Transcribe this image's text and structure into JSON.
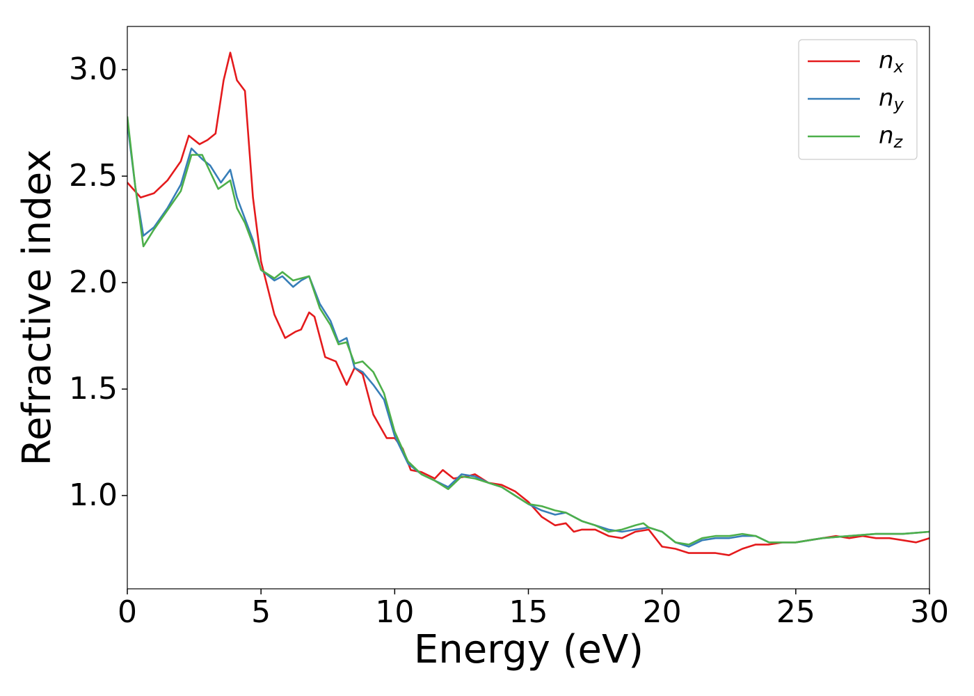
{
  "chart_data": {
    "type": "line",
    "xlabel": "Energy (eV)",
    "ylabel": "Refractive index",
    "xlim": [
      0,
      30
    ],
    "ylim": [
      0.562,
      3.203
    ],
    "xticks": [
      0,
      5,
      10,
      15,
      20,
      25,
      30
    ],
    "yticks": [
      {
        "value": 1,
        "label": "1.0"
      },
      1.5,
      {
        "value": 2,
        "label": "2.0"
      },
      2.5,
      {
        "value": 3,
        "label": "3.0"
      }
    ],
    "grid": false,
    "legend": "upper right",
    "series": [
      {
        "name": "nx",
        "color": "#e41a1c",
        "x": [
          0,
          0.5,
          1,
          1.5,
          2,
          2.3,
          2.7,
          3,
          3.3,
          3.6,
          3.85,
          4.1,
          4.4,
          4.7,
          5,
          5.5,
          5.9,
          6.3,
          6.5,
          6.8,
          7,
          7.4,
          7.8,
          8.2,
          8.5,
          8.8,
          9.2,
          9.7,
          10,
          10.3,
          10.6,
          11,
          11.5,
          11.8,
          12.2,
          12.7,
          13,
          13.5,
          14,
          14.5,
          15,
          15.5,
          16,
          16.4,
          16.7,
          17,
          17.5,
          18,
          18.5,
          19,
          19.5,
          20,
          20.5,
          21,
          21.5,
          22,
          22.5,
          23,
          23.5,
          24,
          24.5,
          25,
          25.5,
          26,
          26.5,
          27,
          27.5,
          28,
          28.5,
          29,
          29.5,
          30
        ],
        "values": [
          2.47,
          2.4,
          2.42,
          2.48,
          2.57,
          2.69,
          2.65,
          2.67,
          2.7,
          2.95,
          3.08,
          2.95,
          2.9,
          2.4,
          2.1,
          1.85,
          1.74,
          1.77,
          1.78,
          1.86,
          1.84,
          1.65,
          1.63,
          1.52,
          1.6,
          1.57,
          1.38,
          1.27,
          1.27,
          1.22,
          1.12,
          1.11,
          1.08,
          1.12,
          1.08,
          1.09,
          1.1,
          1.06,
          1.05,
          1.02,
          0.97,
          0.9,
          0.86,
          0.87,
          0.83,
          0.84,
          0.84,
          0.81,
          0.8,
          0.83,
          0.84,
          0.76,
          0.75,
          0.73,
          0.73,
          0.73,
          0.72,
          0.75,
          0.77,
          0.77,
          0.78,
          0.78,
          0.79,
          0.8,
          0.81,
          0.8,
          0.81,
          0.8,
          0.8,
          0.79,
          0.78,
          0.8
        ]
      },
      {
        "name": "ny",
        "color": "#377eb8",
        "x": [
          0,
          0.3,
          0.6,
          1,
          1.5,
          2,
          2.4,
          2.8,
          3.1,
          3.5,
          3.85,
          4.1,
          4.4,
          4.7,
          5,
          5.5,
          5.8,
          6.2,
          6.5,
          6.8,
          7.2,
          7.6,
          7.9,
          8.2,
          8.5,
          8.8,
          9.2,
          9.6,
          10,
          10.5,
          11,
          11.5,
          12,
          12.5,
          13,
          13.5,
          14,
          14.5,
          15,
          15.5,
          16,
          16.4,
          17,
          17.5,
          18,
          18.5,
          19,
          19.5,
          20,
          20.5,
          21,
          21.5,
          22,
          22.5,
          23,
          23.5,
          24,
          25,
          26,
          27,
          28,
          29,
          30
        ],
        "values": [
          2.75,
          2.45,
          2.22,
          2.26,
          2.35,
          2.46,
          2.63,
          2.58,
          2.55,
          2.47,
          2.53,
          2.4,
          2.3,
          2.2,
          2.06,
          2.01,
          2.03,
          1.98,
          2.01,
          2.03,
          1.9,
          1.82,
          1.72,
          1.74,
          1.6,
          1.58,
          1.52,
          1.45,
          1.28,
          1.15,
          1.1,
          1.07,
          1.04,
          1.1,
          1.09,
          1.06,
          1.04,
          1.0,
          0.96,
          0.93,
          0.91,
          0.92,
          0.88,
          0.86,
          0.84,
          0.83,
          0.84,
          0.85,
          0.83,
          0.78,
          0.76,
          0.79,
          0.8,
          0.8,
          0.81,
          0.81,
          0.78,
          0.78,
          0.8,
          0.81,
          0.82,
          0.82,
          0.83
        ]
      },
      {
        "name": "nz",
        "color": "#4daf4a",
        "x": [
          0,
          0.3,
          0.6,
          1,
          1.5,
          2,
          2.4,
          2.8,
          3.1,
          3.4,
          3.85,
          4.1,
          4.4,
          4.7,
          5,
          5.5,
          5.8,
          6.2,
          6.5,
          6.8,
          7.2,
          7.6,
          7.9,
          8.2,
          8.5,
          8.8,
          9.2,
          9.6,
          10,
          10.5,
          11,
          11.5,
          12,
          12.5,
          13,
          13.5,
          14,
          14.5,
          15,
          15.5,
          16,
          16.4,
          17,
          17.5,
          18,
          18.5,
          19,
          19.3,
          19.5,
          20,
          20.5,
          21,
          21.5,
          22,
          22.5,
          23,
          23.5,
          24,
          25,
          26,
          27,
          28,
          29,
          30
        ],
        "values": [
          2.78,
          2.45,
          2.17,
          2.25,
          2.34,
          2.43,
          2.6,
          2.6,
          2.52,
          2.44,
          2.48,
          2.35,
          2.28,
          2.18,
          2.06,
          2.02,
          2.05,
          2.01,
          2.02,
          2.03,
          1.88,
          1.8,
          1.71,
          1.72,
          1.62,
          1.63,
          1.58,
          1.48,
          1.3,
          1.16,
          1.1,
          1.07,
          1.03,
          1.09,
          1.08,
          1.06,
          1.04,
          1.0,
          0.96,
          0.95,
          0.93,
          0.92,
          0.88,
          0.86,
          0.83,
          0.84,
          0.86,
          0.87,
          0.85,
          0.83,
          0.78,
          0.77,
          0.8,
          0.81,
          0.81,
          0.82,
          0.81,
          0.78,
          0.78,
          0.8,
          0.81,
          0.82,
          0.82,
          0.83
        ]
      }
    ]
  }
}
